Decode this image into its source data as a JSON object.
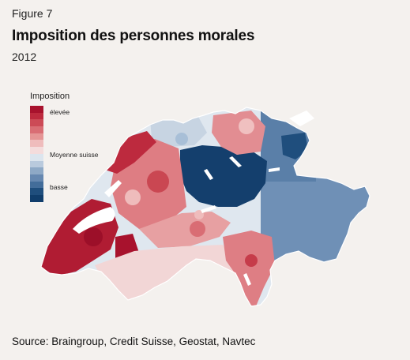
{
  "figure_label": "Figure 7",
  "title": "Imposition des personnes morales",
  "subtitle": "2012",
  "legend": {
    "title": "Imposition",
    "high_label": "élevée",
    "mid_label": "Moyenne suisse",
    "low_label": "basse",
    "colors": [
      "#a8122d",
      "#bd2a3e",
      "#cc4a56",
      "#d96d74",
      "#e59595",
      "#efbcbc",
      "#f4dcdc",
      "#dce5ee",
      "#b9cadd",
      "#8ea9c6",
      "#6688b0",
      "#436d9a",
      "#1f4e7d",
      "#103d6b"
    ]
  },
  "source": "Source: Braingroup, Credit Suisse, Geostat, Navtec"
}
